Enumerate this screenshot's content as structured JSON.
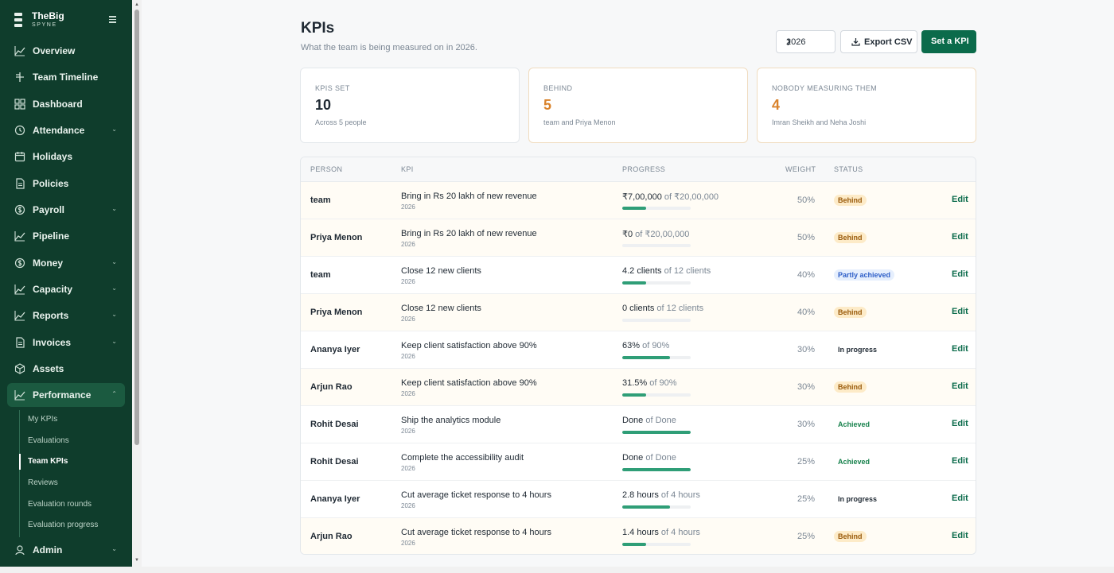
{
  "app": {
    "brand_name": "TheBig",
    "brand_sub": "SPYNE"
  },
  "sidebar": {
    "items": [
      {
        "label": "Overview",
        "icon": "chart-line-icon",
        "chevron": false
      },
      {
        "label": "Team Timeline",
        "icon": "timeline-icon",
        "chevron": false
      },
      {
        "label": "Dashboard",
        "icon": "grid-icon",
        "chevron": false
      },
      {
        "label": "Attendance",
        "icon": "clock-icon",
        "chevron": true
      },
      {
        "label": "Holidays",
        "icon": "calendar-icon",
        "chevron": false
      },
      {
        "label": "Policies",
        "icon": "document-icon",
        "chevron": false
      },
      {
        "label": "Payroll",
        "icon": "dollar-circle-icon",
        "chevron": true
      },
      {
        "label": "Pipeline",
        "icon": "chart-line-icon",
        "chevron": false
      },
      {
        "label": "Money",
        "icon": "dollar-circle-icon",
        "chevron": true
      },
      {
        "label": "Capacity",
        "icon": "chart-line-icon",
        "chevron": true
      },
      {
        "label": "Reports",
        "icon": "chart-line-icon",
        "chevron": true
      },
      {
        "label": "Invoices",
        "icon": "document-icon",
        "chevron": true
      },
      {
        "label": "Assets",
        "icon": "box-icon",
        "chevron": false
      },
      {
        "label": "Performance",
        "icon": "chart-line-icon",
        "chevron": true,
        "expanded": true
      }
    ],
    "subitems": [
      {
        "label": "My KPIs"
      },
      {
        "label": "Evaluations"
      },
      {
        "label": "Team KPIs",
        "active": true
      },
      {
        "label": "Reviews"
      },
      {
        "label": "Evaluation rounds"
      },
      {
        "label": "Evaluation progress"
      }
    ],
    "admin": {
      "label": "Admin",
      "icon": "user-icon"
    }
  },
  "header": {
    "title": "KPIs",
    "subtitle": "What the team is being measured on in 2026.",
    "year_value": "2026",
    "export_label": "Export CSV",
    "set_kpi_label": "Set a KPI"
  },
  "cards": [
    {
      "label": "KPIS SET",
      "value": "10",
      "desc": "Across 5 people"
    },
    {
      "label": "BEHIND",
      "value": "5",
      "desc": "team and Priya Menon"
    },
    {
      "label": "NOBODY MEASURING THEM",
      "value": "4",
      "desc": "Imran Sheikh and Neha Joshi"
    }
  ],
  "table": {
    "headers": {
      "person": "PERSON",
      "kpi": "KPI",
      "progress": "PROGRESS",
      "weight": "WEIGHT",
      "status": "STATUS"
    },
    "edit_label": "Edit",
    "rows": [
      {
        "person": "team",
        "kpi": "Bring in Rs 20 lakh of new revenue",
        "year": "2026",
        "current": "₹7,00,000",
        "of": " of ₹20,00,000",
        "progress": 0.35,
        "weight": "50%",
        "status": "Behind",
        "status_kind": "behind"
      },
      {
        "person": "Priya Menon",
        "kpi": "Bring in Rs 20 lakh of new revenue",
        "year": "2026",
        "current": "₹0",
        "of": " of ₹20,00,000",
        "progress": 0,
        "weight": "50%",
        "status": "Behind",
        "status_kind": "behind"
      },
      {
        "person": "team",
        "kpi": "Close 12 new clients",
        "year": "2026",
        "current": "4.2 clients",
        "of": " of 12 clients",
        "progress": 0.35,
        "weight": "40%",
        "status": "Partly achieved",
        "status_kind": "partly"
      },
      {
        "person": "Priya Menon",
        "kpi": "Close 12 new clients",
        "year": "2026",
        "current": "0 clients",
        "of": " of 12 clients",
        "progress": 0,
        "weight": "40%",
        "status": "Behind",
        "status_kind": "behind"
      },
      {
        "person": "Ananya Iyer",
        "kpi": "Keep client satisfaction above 90%",
        "year": "2026",
        "current": "63%",
        "of": " of 90%",
        "progress": 0.7,
        "weight": "30%",
        "status": "In progress",
        "status_kind": "progress"
      },
      {
        "person": "Arjun Rao",
        "kpi": "Keep client satisfaction above 90%",
        "year": "2026",
        "current": "31.5%",
        "of": " of 90%",
        "progress": 0.35,
        "weight": "30%",
        "status": "Behind",
        "status_kind": "behind"
      },
      {
        "person": "Rohit Desai",
        "kpi": "Ship the analytics module",
        "year": "2026",
        "current": "Done",
        "of": " of Done",
        "progress": 1,
        "weight": "30%",
        "status": "Achieved",
        "status_kind": "achieved"
      },
      {
        "person": "Rohit Desai",
        "kpi": "Complete the accessibility audit",
        "year": "2026",
        "current": "Done",
        "of": " of Done",
        "progress": 1,
        "weight": "25%",
        "status": "Achieved",
        "status_kind": "achieved"
      },
      {
        "person": "Ananya Iyer",
        "kpi": "Cut average ticket response to 4 hours",
        "year": "2026",
        "current": "2.8 hours",
        "of": " of 4 hours",
        "progress": 0.7,
        "weight": "25%",
        "status": "In progress",
        "status_kind": "progress"
      },
      {
        "person": "Arjun Rao",
        "kpi": "Cut average ticket response to 4 hours",
        "year": "2026",
        "current": "1.4 hours",
        "of": " of 4 hours",
        "progress": 0.35,
        "weight": "25%",
        "status": "Behind",
        "status_kind": "behind"
      }
    ]
  },
  "colors": {
    "sidebar_bg": "#0f3d2c",
    "accent": "#0b6b4b",
    "progress_fill": "#2f9e77",
    "behind_bg": "#fdebc8",
    "behind_fg": "#9a5b0b",
    "partly_bg": "#e6effd",
    "partly_fg": "#2e5fc8",
    "achieved_fg": "#18824d",
    "progress_fg": "#1f2933"
  }
}
